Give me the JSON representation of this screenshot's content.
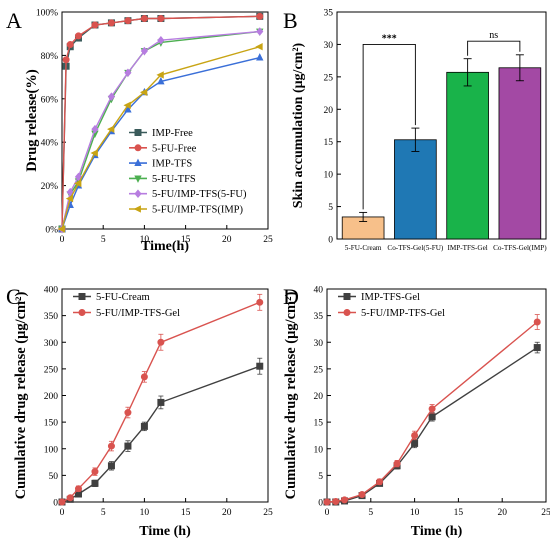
{
  "chart_data": [
    {
      "panel": "A",
      "type": "line",
      "xlabel": "Time(h)",
      "ylabel": "Drug release(%)",
      "xlim": [
        0,
        25
      ],
      "ylim": [
        0,
        100
      ],
      "x_ticks": [
        0,
        5,
        10,
        15,
        20,
        25
      ],
      "y_ticks": [
        0,
        20,
        40,
        60,
        80,
        100
      ],
      "y_tick_labels": [
        "0%",
        "20%",
        "40%",
        "60%",
        "80%",
        "100%"
      ],
      "grid": false,
      "legend_position": "center-right",
      "series": [
        {
          "name": "IMP-Free",
          "color": "#3a5b5b",
          "marker": "square",
          "x": [
            0,
            0.5,
            1,
            2,
            4,
            6,
            8,
            10,
            12,
            24
          ],
          "y": [
            0,
            75,
            84,
            88,
            94,
            95,
            96,
            97,
            97,
            98
          ]
        },
        {
          "name": "5-FU-Free",
          "color": "#d9534f",
          "marker": "circle",
          "x": [
            0,
            0.5,
            1,
            2,
            4,
            6,
            8,
            10,
            12,
            24
          ],
          "y": [
            0,
            78,
            85,
            89,
            94,
            95,
            96,
            97,
            97,
            98
          ]
        },
        {
          "name": "IMP-TFS",
          "color": "#3a6fd8",
          "marker": "triangle",
          "x": [
            0,
            1,
            2,
            4,
            6,
            8,
            10,
            12,
            24
          ],
          "y": [
            0,
            11,
            20,
            34,
            45,
            55,
            63,
            68,
            79
          ]
        },
        {
          "name": "5-FU-TFS",
          "color": "#4caf50",
          "marker": "triangle-down",
          "x": [
            0,
            1,
            2,
            4,
            6,
            8,
            10,
            12,
            24
          ],
          "y": [
            0,
            16,
            22,
            44,
            60,
            72,
            82,
            86,
            91
          ]
        },
        {
          "name": "5-FU/IMP-TFS(5-FU)",
          "color": "#b77de0",
          "marker": "diamond",
          "x": [
            0,
            1,
            2,
            4,
            6,
            8,
            10,
            12,
            24
          ],
          "y": [
            0,
            17,
            24,
            46,
            61,
            72,
            82,
            87,
            91
          ]
        },
        {
          "name": "5-FU/IMP-TFS(IMP)",
          "color": "#c8a414",
          "marker": "triangle-left",
          "x": [
            0,
            1,
            2,
            4,
            6,
            8,
            10,
            12,
            24
          ],
          "y": [
            0,
            14,
            21,
            35,
            46,
            57,
            63,
            71,
            84
          ]
        }
      ]
    },
    {
      "panel": "B",
      "type": "bar",
      "ylabel": "Skin accumulation (μg/cm²)",
      "ylim": [
        0,
        35
      ],
      "y_ticks": [
        0,
        5,
        10,
        15,
        20,
        25,
        30,
        35
      ],
      "categories": [
        "5-FU-Cream",
        "Co-TFS-Gel(5-FU)",
        "IMP-TFS-Gel",
        "Co-TFS-Gel(IMP)"
      ],
      "values": [
        3.4,
        15.3,
        25.7,
        26.4
      ],
      "errors": [
        0.7,
        1.8,
        2.1,
        2.0
      ],
      "colors": [
        "#f7c08a",
        "#1f78b4",
        "#19b34a",
        "#a349a4"
      ],
      "annotations": [
        {
          "text": "***",
          "from": 0,
          "to": 1,
          "y": 30
        },
        {
          "text": "ns",
          "from": 2,
          "to": 3,
          "y": 30.5
        }
      ]
    },
    {
      "panel": "C",
      "type": "line",
      "xlabel": "Time (h)",
      "ylabel": "Cumulative drug release (μg/cm²)",
      "xlim": [
        0,
        25
      ],
      "ylim": [
        0,
        400
      ],
      "x_ticks": [
        0,
        5,
        10,
        15,
        20,
        25
      ],
      "y_ticks": [
        0,
        50,
        100,
        150,
        200,
        250,
        300,
        350,
        400
      ],
      "grid": false,
      "legend_position": "top-left",
      "series": [
        {
          "name": "5-FU-Cream",
          "color": "#404040",
          "marker": "square",
          "x": [
            0,
            1,
            2,
            4,
            6,
            8,
            10,
            12,
            24
          ],
          "y": [
            0,
            5,
            15,
            35,
            68,
            105,
            142,
            187,
            255
          ],
          "err": [
            0,
            2,
            4,
            6,
            8,
            10,
            8,
            12,
            15
          ]
        },
        {
          "name": "5-FU/IMP-TFS-Gel",
          "color": "#d9534f",
          "marker": "circle",
          "x": [
            0,
            1,
            2,
            4,
            6,
            8,
            10,
            12,
            24
          ],
          "y": [
            0,
            8,
            25,
            57,
            105,
            168,
            235,
            300,
            375
          ],
          "err": [
            0,
            3,
            5,
            7,
            9,
            10,
            10,
            15,
            15
          ]
        }
      ]
    },
    {
      "panel": "D",
      "type": "line",
      "xlabel": "Time (h)",
      "ylabel": "Cumulative drug release (μg/cm²)",
      "xlim": [
        0,
        25
      ],
      "ylim": [
        0,
        40
      ],
      "x_ticks": [
        0,
        5,
        10,
        15,
        20,
        25
      ],
      "y_ticks": [
        0,
        5,
        10,
        15,
        20,
        25,
        30,
        35,
        40
      ],
      "grid": false,
      "legend_position": "top-left",
      "series": [
        {
          "name": "IMP-TFS-Gel",
          "color": "#404040",
          "marker": "square",
          "x": [
            0,
            1,
            2,
            4,
            6,
            8,
            10,
            12,
            24
          ],
          "y": [
            0,
            0,
            0.2,
            1.2,
            3.5,
            6.8,
            11,
            16,
            29
          ],
          "err": [
            0.3,
            0.3,
            0.3,
            0.4,
            0.5,
            0.6,
            0.8,
            0.8,
            1.0
          ]
        },
        {
          "name": "5-FU/IMP-TFS-Gel",
          "color": "#d9534f",
          "marker": "circle",
          "x": [
            0,
            1,
            2,
            4,
            6,
            8,
            10,
            12,
            24
          ],
          "y": [
            0,
            0.1,
            0.4,
            1.4,
            3.8,
            7.2,
            12.5,
            17.5,
            33.8
          ],
          "err": [
            0.3,
            0.3,
            0.3,
            0.4,
            0.5,
            0.6,
            0.8,
            0.8,
            1.4
          ]
        }
      ]
    }
  ]
}
